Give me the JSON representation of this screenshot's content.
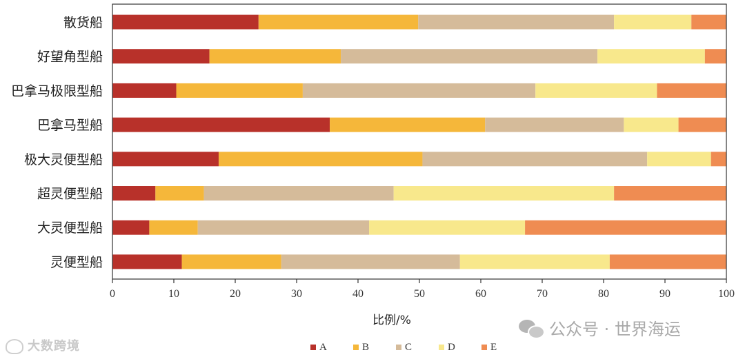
{
  "chart_data": {
    "type": "bar",
    "orientation": "horizontal",
    "stacked": true,
    "title": "",
    "xlabel": "比例/%",
    "ylabel": "",
    "xlim": [
      0,
      100
    ],
    "xticks": [
      0,
      10,
      20,
      30,
      40,
      50,
      60,
      70,
      80,
      90,
      100
    ],
    "categories": [
      "散货船",
      "好望角型船",
      "巴拿马极限型船",
      "巴拿马型船",
      "极大灵便型船",
      "超灵便型船",
      "大灵便型船",
      "灵便型船"
    ],
    "series": [
      {
        "name": "A",
        "color": "#b8312a",
        "values": [
          23.8,
          15.8,
          10.4,
          35.4,
          17.3,
          7.0,
          6.0,
          11.3
        ]
      },
      {
        "name": "B",
        "color": "#f5b73a",
        "values": [
          26.0,
          21.4,
          20.6,
          25.3,
          33.2,
          7.9,
          7.9,
          16.2
        ]
      },
      {
        "name": "C",
        "color": "#d5bb9a",
        "values": [
          31.9,
          41.8,
          37.9,
          22.6,
          36.6,
          30.9,
          27.9,
          29.1
        ]
      },
      {
        "name": "D",
        "color": "#f8e88c",
        "values": [
          12.6,
          17.5,
          19.8,
          8.9,
          10.4,
          35.9,
          25.4,
          24.4
        ]
      },
      {
        "name": "E",
        "color": "#ef8c52",
        "values": [
          5.7,
          3.5,
          11.3,
          7.8,
          2.5,
          18.3,
          32.8,
          19.0
        ]
      }
    ],
    "legend_position": "bottom",
    "grid": false
  },
  "watermarks": {
    "left": "大数跨境",
    "right": "公众号 · 世界海运"
  },
  "icons": {
    "right_watermark_icon": "wechat-icon",
    "left_watermark_icon": "logo-icon"
  }
}
